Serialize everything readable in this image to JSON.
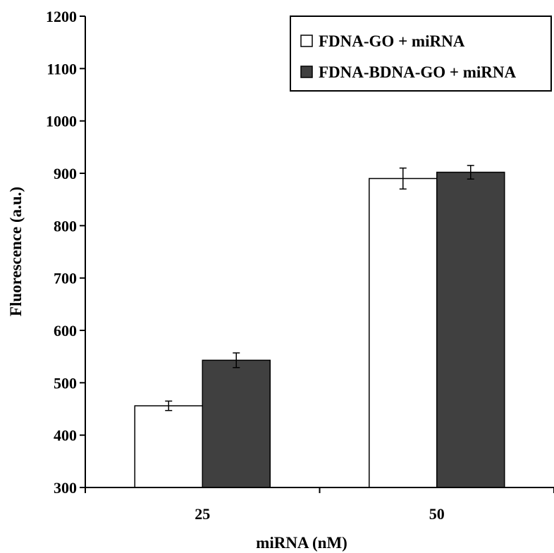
{
  "chart_data": {
    "type": "bar",
    "categories": [
      "25",
      "50"
    ],
    "series": [
      {
        "name": "FDNA-GO + miRNA",
        "color": "#ffffff",
        "values": [
          456,
          890
        ],
        "errors": [
          9,
          20
        ]
      },
      {
        "name": "FDNA-BDNA-GO + miRNA",
        "color": "#404040",
        "values": [
          543,
          902
        ],
        "errors": [
          14,
          13
        ]
      }
    ],
    "xlabel": "miRNA (nM)",
    "ylabel": "Fluorescence (a.u.)",
    "ylim": [
      300,
      1200
    ],
    "yticks": [
      300,
      400,
      500,
      600,
      700,
      800,
      900,
      1000,
      1100,
      1200
    ],
    "grid": false,
    "legend": "top-right"
  }
}
